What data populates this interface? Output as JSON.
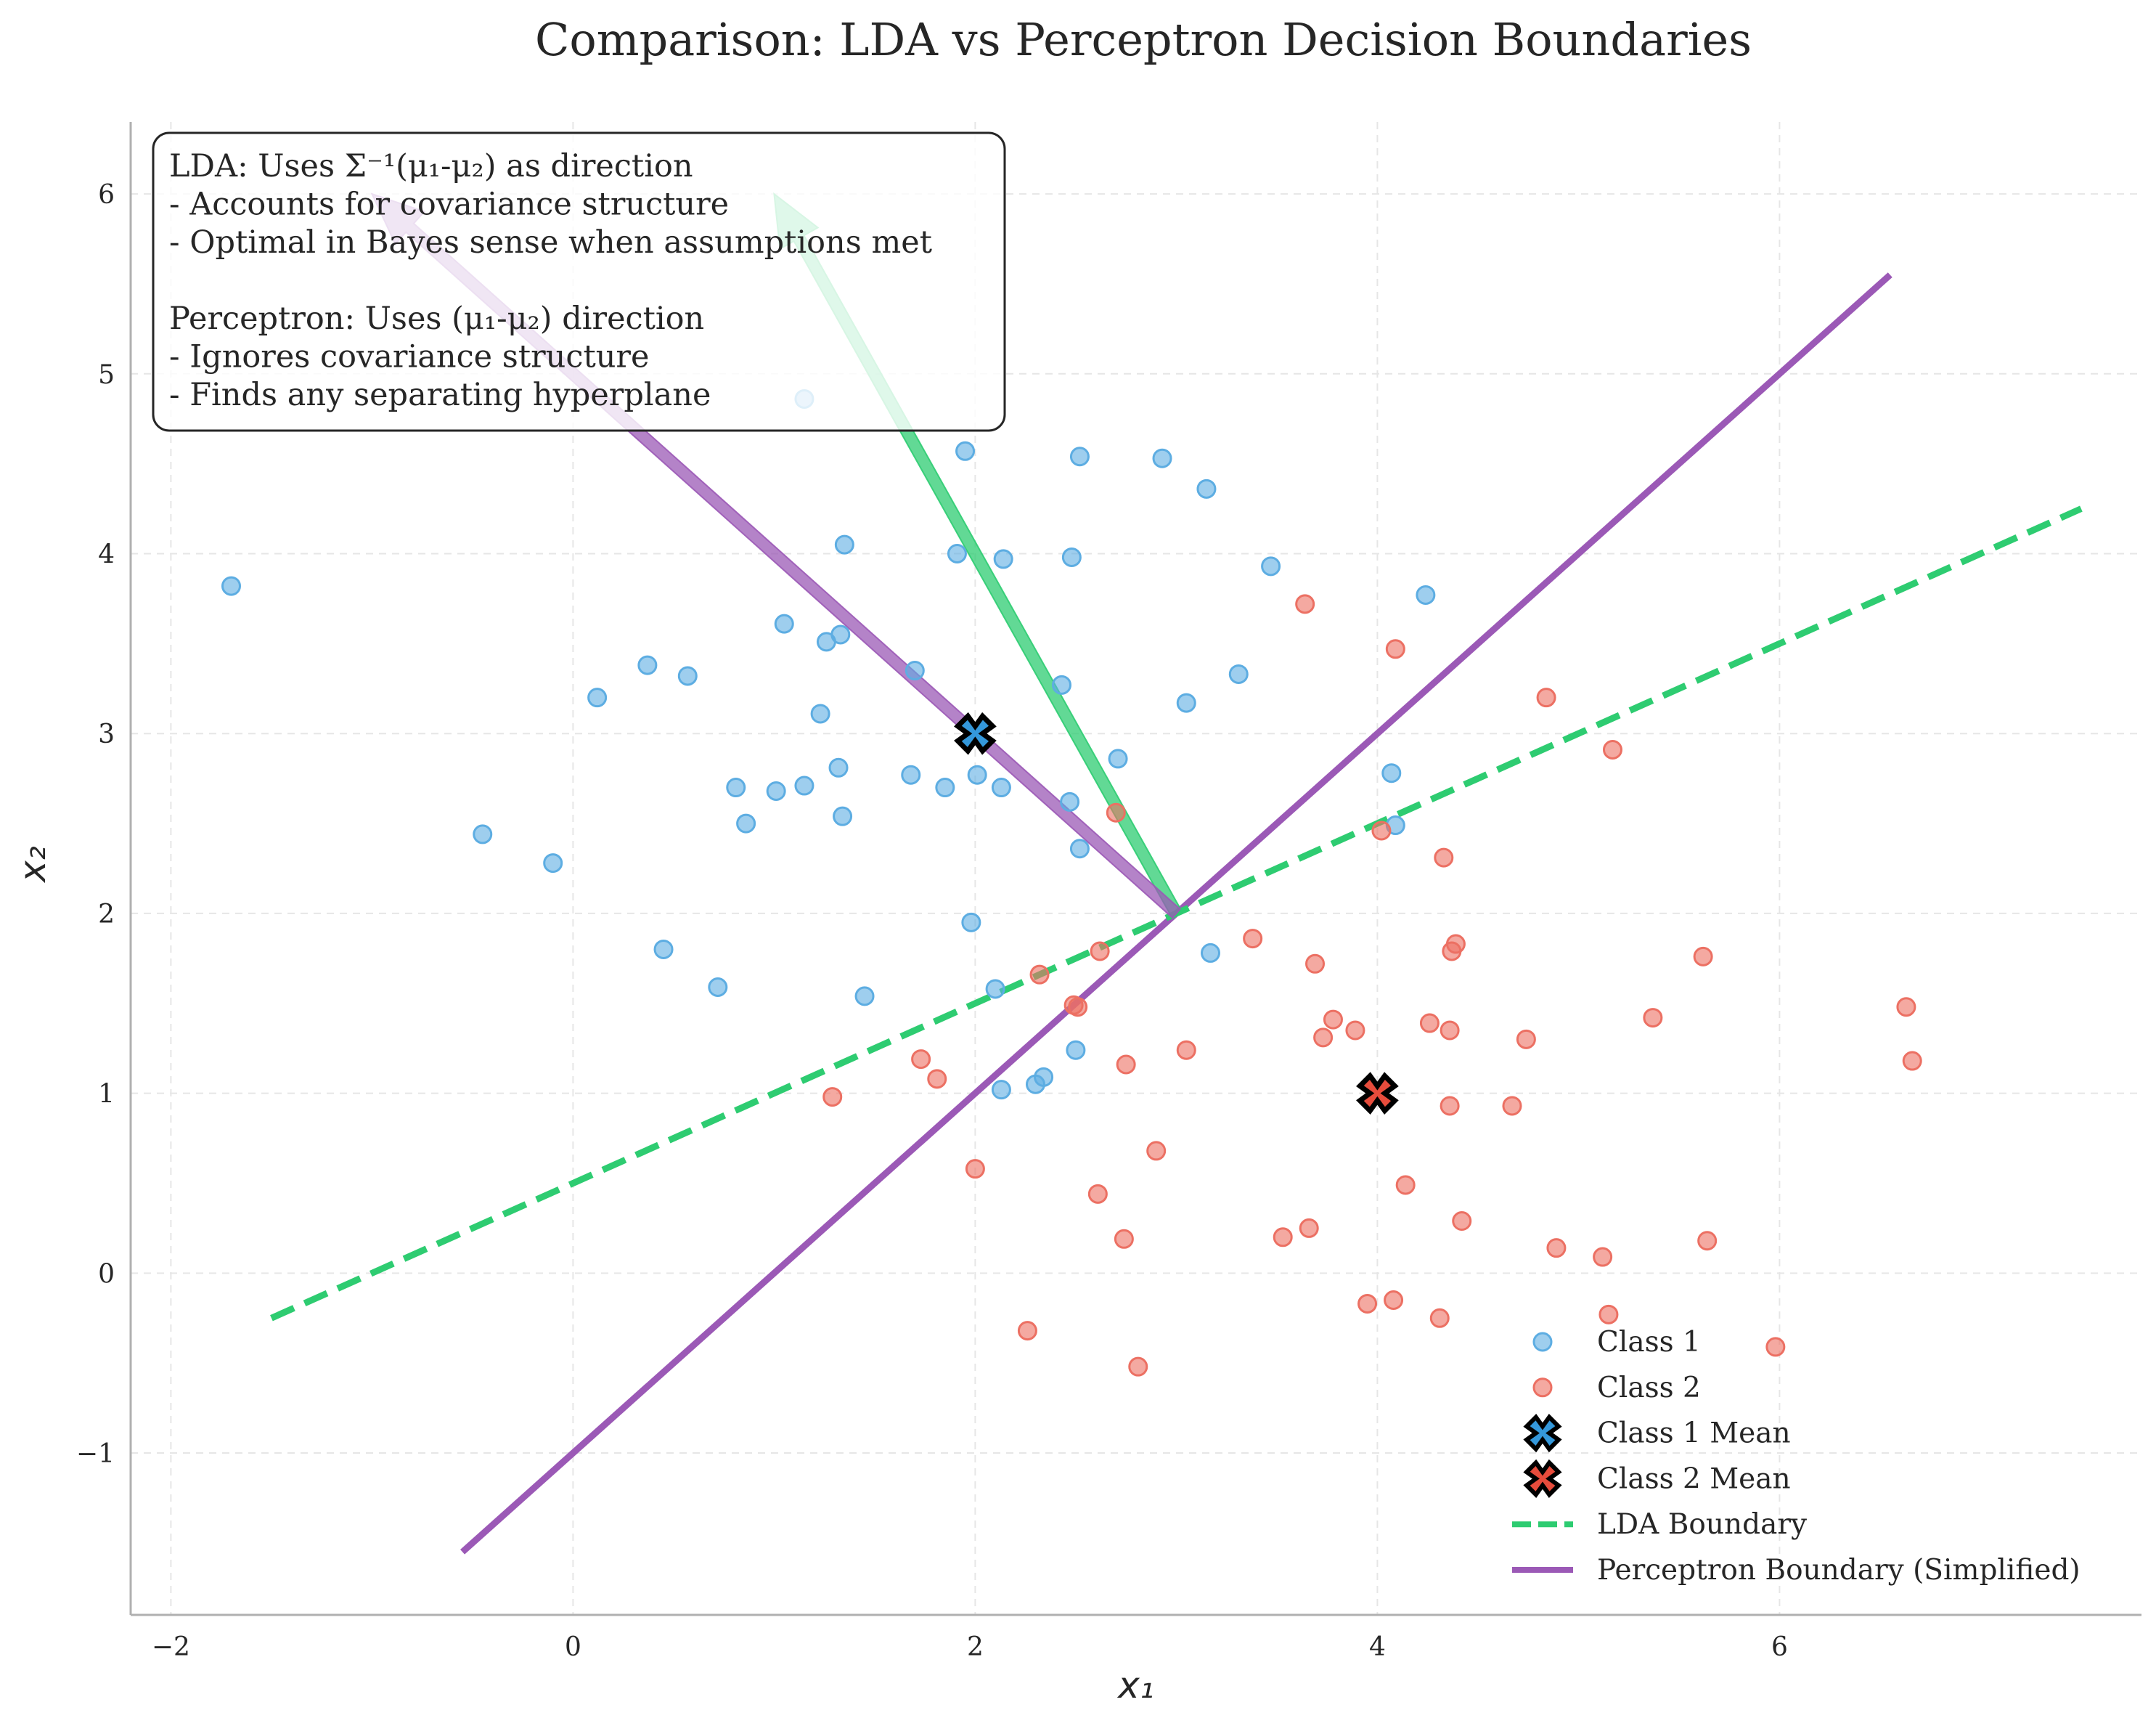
{
  "chart_data": {
    "type": "scatter",
    "title": "Comparison: LDA vs Perceptron Decision Boundaries",
    "xlabel": "x₁",
    "ylabel": "x₂",
    "xlim": [
      -2.2,
      7.8
    ],
    "ylim": [
      -1.9,
      6.4
    ],
    "x_ticks": [
      -2,
      0,
      2,
      4,
      6
    ],
    "y_ticks": [
      -1,
      0,
      1,
      2,
      3,
      4,
      5,
      6
    ],
    "x_tick_labels": [
      "−2",
      "0",
      "2",
      "4",
      "6"
    ],
    "y_tick_labels": [
      "−1",
      "0",
      "1",
      "2",
      "3",
      "4",
      "5",
      "6"
    ],
    "grid": true,
    "legend_position": "lower-right",
    "series": [
      {
        "name": "Class 1",
        "kind": "points",
        "color": "#5dade2",
        "points": [
          [
            -1.7,
            3.82
          ],
          [
            -0.45,
            2.44
          ],
          [
            -0.1,
            2.28
          ],
          [
            0.12,
            3.2
          ],
          [
            0.37,
            3.38
          ],
          [
            0.45,
            1.8
          ],
          [
            0.57,
            3.32
          ],
          [
            0.72,
            1.59
          ],
          [
            0.81,
            2.7
          ],
          [
            0.86,
            2.5
          ],
          [
            1.01,
            2.68
          ],
          [
            1.05,
            3.61
          ],
          [
            1.15,
            4.86
          ],
          [
            1.15,
            2.71
          ],
          [
            1.23,
            3.11
          ],
          [
            1.26,
            3.51
          ],
          [
            1.32,
            2.81
          ],
          [
            1.33,
            3.55
          ],
          [
            1.34,
            2.54
          ],
          [
            1.35,
            4.05
          ],
          [
            1.45,
            1.54
          ],
          [
            1.68,
            2.77
          ],
          [
            1.7,
            3.35
          ],
          [
            1.85,
            2.7
          ],
          [
            1.91,
            4.0
          ],
          [
            1.95,
            4.57
          ],
          [
            1.98,
            1.95
          ],
          [
            2.01,
            2.77
          ],
          [
            2.1,
            1.58
          ],
          [
            2.13,
            2.7
          ],
          [
            2.13,
            1.02
          ],
          [
            2.14,
            3.97
          ],
          [
            2.3,
            1.05
          ],
          [
            2.34,
            1.09
          ],
          [
            2.43,
            3.27
          ],
          [
            2.47,
            2.62
          ],
          [
            2.48,
            3.98
          ],
          [
            2.5,
            1.24
          ],
          [
            2.52,
            4.54
          ],
          [
            2.52,
            2.36
          ],
          [
            2.71,
            2.86
          ],
          [
            2.93,
            4.53
          ],
          [
            3.05,
            3.17
          ],
          [
            3.15,
            4.36
          ],
          [
            3.17,
            1.78
          ],
          [
            3.31,
            3.33
          ],
          [
            3.47,
            3.93
          ],
          [
            4.07,
            2.78
          ],
          [
            4.09,
            2.49
          ],
          [
            4.24,
            3.77
          ]
        ]
      },
      {
        "name": "Class 2",
        "kind": "points",
        "color": "#ec7063",
        "points": [
          [
            1.29,
            0.98
          ],
          [
            1.73,
            1.19
          ],
          [
            1.81,
            1.08
          ],
          [
            2.0,
            0.58
          ],
          [
            2.26,
            -0.32
          ],
          [
            2.32,
            1.66
          ],
          [
            2.49,
            1.49
          ],
          [
            2.51,
            1.48
          ],
          [
            2.61,
            0.44
          ],
          [
            2.62,
            1.79
          ],
          [
            2.7,
            2.56
          ],
          [
            2.74,
            0.19
          ],
          [
            2.75,
            1.16
          ],
          [
            2.81,
            -0.52
          ],
          [
            2.9,
            0.68
          ],
          [
            3.05,
            1.24
          ],
          [
            3.38,
            1.86
          ],
          [
            3.53,
            0.2
          ],
          [
            3.64,
            3.72
          ],
          [
            3.66,
            0.25
          ],
          [
            3.69,
            1.72
          ],
          [
            3.73,
            1.31
          ],
          [
            3.78,
            1.41
          ],
          [
            3.89,
            1.35
          ],
          [
            3.95,
            -0.17
          ],
          [
            4.02,
            2.46
          ],
          [
            4.08,
            -0.15
          ],
          [
            4.09,
            3.47
          ],
          [
            4.14,
            0.49
          ],
          [
            4.26,
            1.39
          ],
          [
            4.31,
            -0.25
          ],
          [
            4.33,
            2.31
          ],
          [
            4.36,
            1.35
          ],
          [
            4.36,
            0.93
          ],
          [
            4.37,
            1.79
          ],
          [
            4.39,
            1.83
          ],
          [
            4.42,
            0.29
          ],
          [
            4.67,
            0.93
          ],
          [
            4.74,
            1.3
          ],
          [
            4.84,
            3.2
          ],
          [
            4.89,
            0.14
          ],
          [
            5.12,
            0.09
          ],
          [
            5.15,
            -0.23
          ],
          [
            5.17,
            2.91
          ],
          [
            5.37,
            1.42
          ],
          [
            5.62,
            1.76
          ],
          [
            5.64,
            0.18
          ],
          [
            5.98,
            -0.41
          ],
          [
            6.63,
            1.48
          ],
          [
            6.66,
            1.18
          ]
        ]
      },
      {
        "name": "Class 1 Mean",
        "kind": "marker",
        "color": "#3498db",
        "points": [
          [
            2.0,
            3.0
          ]
        ]
      },
      {
        "name": "Class 2 Mean",
        "kind": "marker",
        "color": "#e74c3c",
        "points": [
          [
            4.0,
            1.0
          ]
        ]
      },
      {
        "name": "LDA Boundary",
        "kind": "line",
        "style": "dashed",
        "color": "#2ecc71",
        "points": [
          [
            -1.5,
            -0.25
          ],
          [
            7.5,
            4.25
          ]
        ]
      },
      {
        "name": "Perceptron Boundary (Simplified)",
        "kind": "line",
        "style": "solid",
        "color": "#9b59b6",
        "points": [
          [
            -0.55,
            -1.55
          ],
          [
            6.55,
            5.55
          ]
        ]
      }
    ],
    "arrows": [
      {
        "color": "#2ecc71",
        "from": [
          3.0,
          2.0
        ],
        "to": [
          1.0,
          6.0
        ]
      },
      {
        "color": "#9b59b6",
        "from": [
          3.0,
          2.0
        ],
        "to": [
          -1.0,
          6.0
        ]
      }
    ],
    "annotation_lines": [
      "LDA: Uses Σ⁻¹(μ₁-μ₂) as direction",
      "- Accounts for covariance structure",
      "- Optimal in Bayes sense when assumptions met",
      "",
      "Perceptron: Uses (μ₁-μ₂) direction",
      "- Ignores covariance structure",
      "- Finds any separating hyperplane"
    ]
  }
}
